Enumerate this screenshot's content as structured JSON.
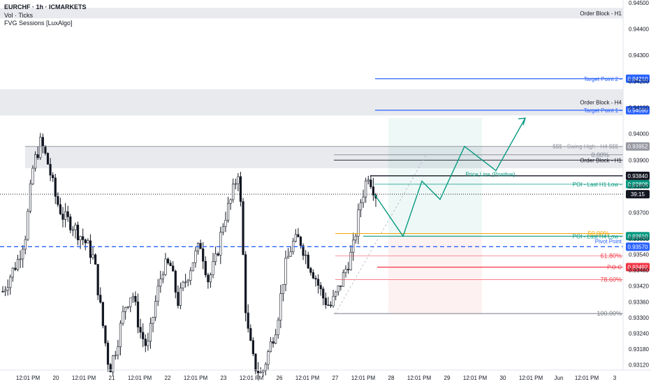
{
  "header": {
    "title": "EURCHF · 1h · ICMARKETS",
    "indicator_1": "Vol · Ticks",
    "indicator_2": "FVG Sessions [LuxAlgo]",
    "countdown": "39:15"
  },
  "colors": {
    "up": "#26a69a",
    "down": "#131722",
    "blue": "#2962ff",
    "red": "#f23645",
    "green": "#089981",
    "orange": "#f7a600",
    "grey": "#787b86",
    "zone": "#e9eaee"
  },
  "chart_data": {
    "type": "candlestick",
    "symbol": "EURCHF",
    "timeframe": "1h",
    "y_range": [
      0.931,
      0.9451
    ],
    "y_ticks": [
      "0.94500",
      "0.94400",
      "0.94300",
      "0.94200",
      "0.94100",
      "0.94000",
      "0.93900",
      "0.93800",
      "0.93700",
      "0.93600",
      "0.93540",
      "0.93480",
      "0.93420",
      "0.93360",
      "0.93300",
      "0.93240",
      "0.93180",
      "0.93120"
    ],
    "x_ticks": [
      "12:01 PM",
      "20",
      "12:01 PM",
      "21",
      "12:01 PM",
      "22",
      "12:01 PM",
      "23",
      "12:01 PM",
      "26",
      "12:01 PM",
      "27",
      "12:01 PM",
      "28",
      "12:01 PM",
      "29",
      "12:01 PM",
      "30",
      "12:01 PM",
      "Jun",
      "12:01 PM",
      "3"
    ],
    "price_path": [
      0.934,
      0.9346,
      0.9352,
      0.9362,
      0.9388,
      0.9397,
      0.9388,
      0.9375,
      0.9368,
      0.9366,
      0.9362,
      0.9358,
      0.9352,
      0.933,
      0.931,
      0.932,
      0.9334,
      0.934,
      0.9325,
      0.9318,
      0.9335,
      0.9349,
      0.935,
      0.9336,
      0.9344,
      0.9352,
      0.9358,
      0.9344,
      0.9352,
      0.9367,
      0.9375,
      0.9387,
      0.9328,
      0.9312,
      0.9308,
      0.9318,
      0.9328,
      0.9348,
      0.9358,
      0.936,
      0.9352,
      0.9346,
      0.9338,
      0.9334,
      0.934,
      0.9348,
      0.9356,
      0.9374,
      0.9385,
      0.9377
    ],
    "price_end": 0.9377,
    "projection_path": [
      0.9377,
      0.9361,
      0.9382,
      0.9375,
      0.93952,
      0.9386,
      0.9406
    ],
    "levels": [
      {
        "label": "Target Point 2",
        "value": 0.9421,
        "tag": "0.94210",
        "color": "#2962ff"
      },
      {
        "label": "Target Point 1",
        "value": 0.9409,
        "tag": "0.94090",
        "color": "#2962ff"
      },
      {
        "label": "$$$ - Swing High - H4 $$$",
        "value": 0.93952,
        "tag": "0.93952",
        "color": "#9598a1"
      },
      {
        "label": "0.00%",
        "value": 0.9392,
        "tag": "",
        "color": "#787b86"
      },
      {
        "label": "Order Block - H1",
        "value": 0.939,
        "tag": "",
        "color": "#131722"
      },
      {
        "label": "",
        "value": 0.9384,
        "tag": "0.93840",
        "color": "#131722"
      },
      {
        "label": "Price Line (Positive)",
        "value": 0.9383,
        "tag": "",
        "color": "#089981"
      },
      {
        "label": "POI - Last H1 Low",
        "value": 0.93808,
        "tag": "0.93808",
        "color": "#089981"
      },
      {
        "label": "50.00%",
        "value": 0.9362,
        "tag": "",
        "color": "#f7a600"
      },
      {
        "label": "POI - Last H4 Low",
        "value": 0.9361,
        "tag": "0.93610",
        "color": "#089981"
      },
      {
        "label": "Pivot Point",
        "value": 0.9357,
        "tag": "0.93570",
        "color": "#2962ff"
      },
      {
        "label": "61.80%",
        "value": 0.93535,
        "tag": "",
        "color": "#f23645"
      },
      {
        "label": "P.O.C",
        "value": 0.93492,
        "tag": "0.93492",
        "color": "#f23645"
      },
      {
        "label": "78.60%",
        "value": 0.93445,
        "tag": "",
        "color": "#f23645"
      },
      {
        "label": "100.00%",
        "value": 0.93315,
        "tag": "",
        "color": "#787b86"
      }
    ],
    "zones": [
      {
        "label": "Order Block - H1",
        "from": 0.9444,
        "to": 0.9448
      },
      {
        "label": "Order Block - H4",
        "from": 0.9407,
        "to": 0.9417
      },
      {
        "label": "",
        "from": 0.93869,
        "to": 0.93952
      }
    ]
  }
}
